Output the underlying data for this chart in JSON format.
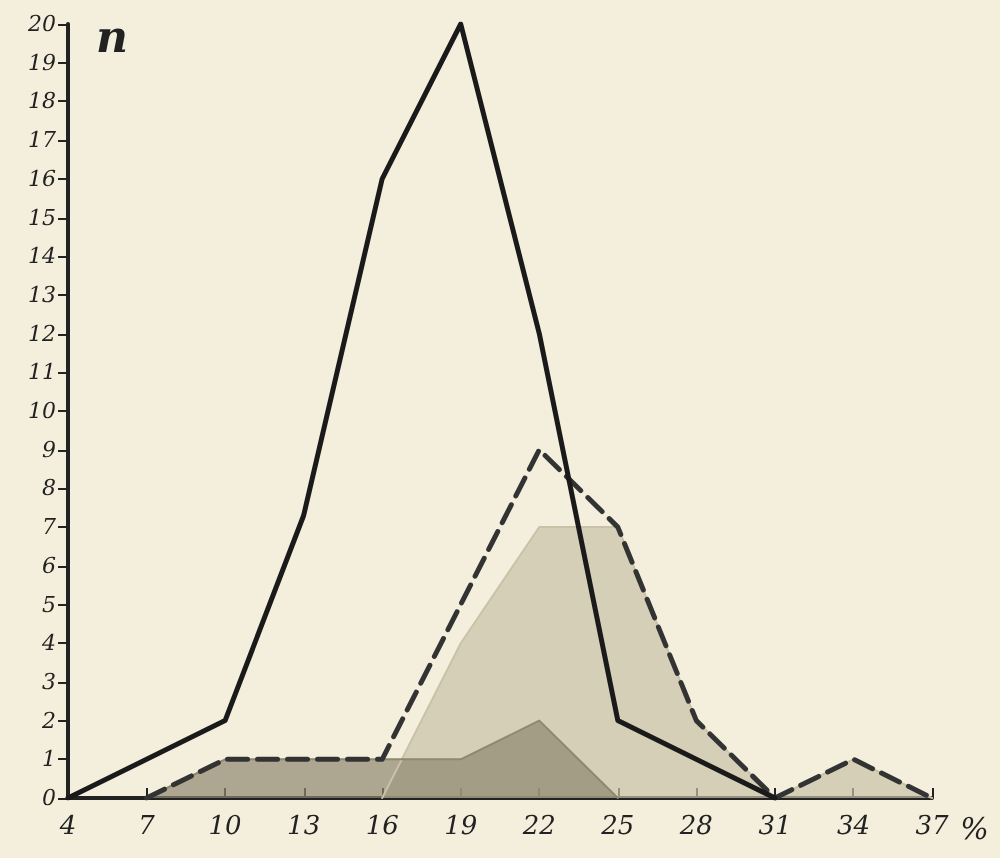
{
  "chart_data": {
    "type": "line",
    "xlabel": "%",
    "ylabel": "n",
    "xlim": [
      4,
      37
    ],
    "xticks": [
      4,
      7,
      10,
      13,
      16,
      19,
      22,
      25,
      28,
      31,
      34,
      37
    ],
    "ylim": [
      0,
      20
    ],
    "yticks": [
      0,
      1,
      2,
      3,
      4,
      5,
      6,
      7,
      8,
      9,
      10,
      11,
      12,
      13,
      14,
      15,
      16,
      17,
      18,
      19,
      20
    ],
    "grid": false,
    "marker": "none",
    "series": [
      {
        "type": "area",
        "color": "#c9c2a8",
        "x": [
          16,
          19,
          22,
          25,
          28,
          31,
          34,
          37
        ],
        "values": [
          0,
          4,
          7,
          7,
          2,
          0,
          1,
          0
        ]
      },
      {
        "type": "area",
        "color": "#8f8770",
        "x": [
          7,
          10,
          13,
          16,
          19,
          22,
          25
        ],
        "values": [
          0,
          1,
          1,
          1,
          1,
          2,
          0
        ]
      },
      {
        "type": "line",
        "color": "#333333",
        "line_style": "dashed",
        "x": [
          7,
          10,
          13,
          16,
          22,
          25,
          28,
          31,
          34,
          37
        ],
        "values": [
          0,
          1,
          1,
          1,
          9,
          7,
          2,
          0,
          1,
          0
        ]
      },
      {
        "type": "line",
        "color": "#1a1a1a",
        "line_style": "solid",
        "x": [
          4,
          10,
          13,
          16,
          19,
          22,
          25,
          31
        ],
        "values": [
          0,
          2,
          7.3,
          16,
          20,
          12,
          2,
          0
        ]
      }
    ]
  }
}
